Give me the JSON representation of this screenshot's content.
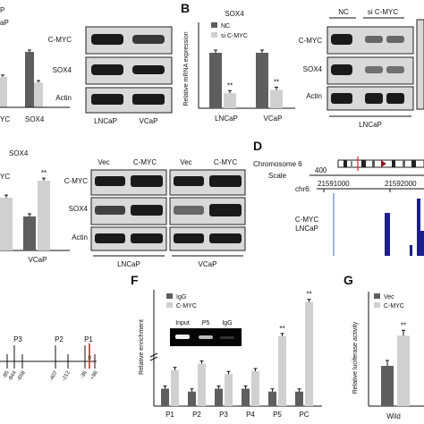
{
  "panelA": {
    "lanes_top": [
      "C-MYC",
      "SOX4",
      "Actin"
    ],
    "xlabels": [
      "LNCaP",
      "VCaP"
    ],
    "bar_x": [
      "YC",
      "SOX4"
    ],
    "legend_partial": [
      "P",
      "aP"
    ]
  },
  "panelB": {
    "letter": "B",
    "title": "SOX4",
    "ylabel": "Relative mRNA expression",
    "legend": [
      "NC",
      "si C-MYC"
    ],
    "xlabels": [
      "LNCaP",
      "VCaP"
    ],
    "sig": [
      "**",
      "**"
    ],
    "blot_header": [
      "NC",
      "si C-MYC"
    ],
    "blot_rows": [
      "C-MYC",
      "SOX4",
      "Actin"
    ],
    "blot_footer": "LNCaP"
  },
  "panelC": {
    "title": "SOX4",
    "ylabel_partial": "YC",
    "sig": "**",
    "xlabel": "VCaP",
    "blot_header": [
      "Vec",
      "C-MYC",
      "Vec",
      "C-MYC"
    ],
    "blot_rows": [
      "C-MYC",
      "SOX4",
      "Actin"
    ],
    "blot_footer": [
      "LNCaP",
      "VCaP"
    ]
  },
  "panelD": {
    "letter": "D",
    "chromosome": "Chromosome 6",
    "scale": "Scale",
    "scale_value": "400",
    "chr": "chr6:",
    "coords": [
      "21591000",
      "21592000"
    ],
    "track": [
      "C-MYC",
      "LNCaP"
    ]
  },
  "panelE": {
    "sites": [
      "P3",
      "P2",
      "P1"
    ],
    "positions": [
      "-85",
      "-844",
      "-658",
      "-407",
      "-212",
      "-36",
      "0",
      "+96"
    ]
  },
  "panelF": {
    "letter": "F",
    "ylabel": "Relative enrichment",
    "legend": [
      "IgG",
      "C-MYC"
    ],
    "gel_labels": [
      "Input",
      "P5",
      "IgG"
    ],
    "categories": [
      "P1",
      "P2",
      "P3",
      "P4",
      "P5",
      "PC"
    ],
    "sig": [
      "**",
      "**"
    ]
  },
  "panelG": {
    "letter": "G",
    "ylabel": "Relative luciferase activity",
    "legend": [
      "Vec",
      "C-MYC"
    ],
    "sig": "**",
    "xlabel": "Wild"
  },
  "chart_data": [
    {
      "type": "bar",
      "title": "",
      "categories": [
        "YC",
        "SOX4"
      ],
      "series": [
        {
          "values": [
            1.0,
            1.0
          ]
        },
        {
          "values": [
            0.55,
            0.45
          ]
        }
      ]
    },
    {
      "type": "bar",
      "title": "SOX4",
      "categories": [
        "LNCaP",
        "VCaP"
      ],
      "series": [
        {
          "name": "NC",
          "values": [
            1.0,
            1.0
          ]
        },
        {
          "name": "si C-MYC",
          "values": [
            0.27,
            0.33
          ]
        }
      ],
      "ylabel": "Relative mRNA expression",
      "ylim": [
        0,
        1.5
      ]
    },
    {
      "type": "bar",
      "title": "SOX4",
      "categories": [
        "",
        "VCaP"
      ],
      "series": [
        {
          "values": [
            1.0,
            1.0
          ]
        },
        {
          "values": [
            1.55,
            2.05
          ]
        }
      ]
    },
    {
      "type": "bar",
      "title": "",
      "categories": [
        "P1",
        "P2",
        "P3",
        "P4",
        "P5",
        "PC"
      ],
      "series": [
        {
          "name": "IgG",
          "values": [
            0.03,
            0.025,
            0.03,
            0.03,
            0.025,
            0.025
          ]
        },
        {
          "name": "C-MYC",
          "values": [
            0.062,
            0.073,
            0.055,
            0.06,
            0.66,
            1.15
          ]
        }
      ],
      "ylabel": "Relative enrichment"
    },
    {
      "type": "bar",
      "title": "",
      "categories": [
        "Wild"
      ],
      "series": [
        {
          "name": "Vec",
          "values": [
            1.0
          ]
        },
        {
          "name": "C-MYC",
          "values": [
            1.75
          ]
        }
      ],
      "ylabel": "Relative luciferase activity",
      "ylim": [
        0,
        2.5
      ]
    }
  ]
}
